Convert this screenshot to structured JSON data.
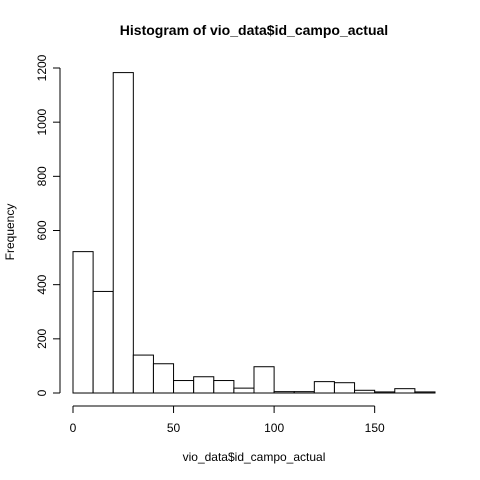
{
  "chart_data": {
    "type": "bar",
    "title": "Histogram of vio_data$id_campo_actual",
    "xlabel": "vio_data$id_campo_actual",
    "ylabel": "Frequency",
    "bins": [
      {
        "x0": 0,
        "x1": 10,
        "count": 522
      },
      {
        "x0": 10,
        "x1": 20,
        "count": 375
      },
      {
        "x0": 20,
        "x1": 30,
        "count": 1183
      },
      {
        "x0": 30,
        "x1": 40,
        "count": 140
      },
      {
        "x0": 40,
        "x1": 50,
        "count": 108
      },
      {
        "x0": 50,
        "x1": 60,
        "count": 46
      },
      {
        "x0": 60,
        "x1": 70,
        "count": 60
      },
      {
        "x0": 70,
        "x1": 80,
        "count": 46
      },
      {
        "x0": 80,
        "x1": 90,
        "count": 18
      },
      {
        "x0": 90,
        "x1": 100,
        "count": 97
      },
      {
        "x0": 100,
        "x1": 110,
        "count": 5
      },
      {
        "x0": 110,
        "x1": 120,
        "count": 5
      },
      {
        "x0": 120,
        "x1": 130,
        "count": 42
      },
      {
        "x0": 130,
        "x1": 140,
        "count": 38
      },
      {
        "x0": 140,
        "x1": 150,
        "count": 10
      },
      {
        "x0": 150,
        "x1": 160,
        "count": 4
      },
      {
        "x0": 160,
        "x1": 170,
        "count": 16
      },
      {
        "x0": 170,
        "x1": 180,
        "count": 4
      }
    ],
    "x_ticks": [
      0,
      50,
      100,
      150
    ],
    "y_ticks": [
      0,
      200,
      400,
      600,
      800,
      1000,
      1200
    ],
    "xlim": [
      0,
      180
    ],
    "ylim": [
      0,
      1200
    ],
    "grid": false,
    "legend": "none",
    "colors": {
      "bar_fill": "#ffffff",
      "bar_stroke": "#000000",
      "background": "#ffffff"
    }
  }
}
